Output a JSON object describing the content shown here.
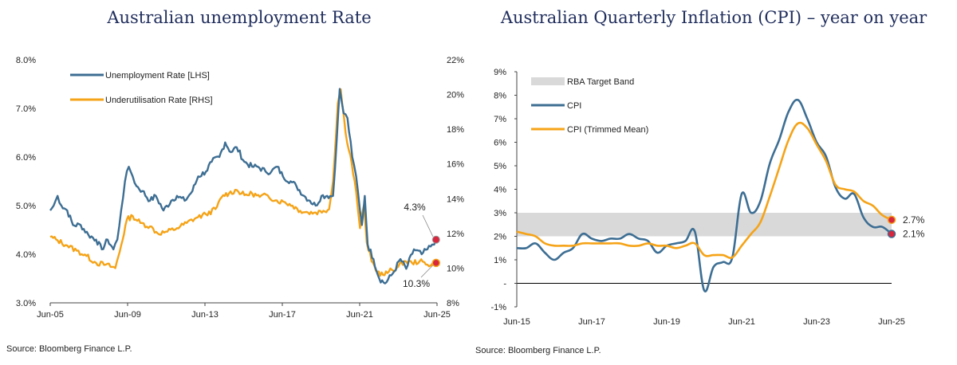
{
  "colors": {
    "blue": "#3d6e93",
    "orange": "#f5a317",
    "band": "#d9d9d9",
    "marker": "#d7263d",
    "neg": "#d7263d",
    "title": "#1f2d5c"
  },
  "chart_data": [
    {
      "type": "line",
      "title": "Australian unemployment Rate",
      "source": "Source: Bloomberg Finance L.P.",
      "x_ticks": [
        "Jun-05",
        "Jun-09",
        "Jun-13",
        "Jun-17",
        "Jun-21",
        "Jun-25"
      ],
      "x_range": [
        2005.42,
        2025.5
      ],
      "ylim_left": [
        3,
        8
      ],
      "ylim_right": [
        8,
        22
      ],
      "y_ticks_left": [
        "3.0%",
        "4.0%",
        "5.0%",
        "6.0%",
        "7.0%",
        "8.0%"
      ],
      "y_ticks_right": [
        "8%",
        "10%",
        "12%",
        "14%",
        "16%",
        "18%",
        "20%",
        "22%"
      ],
      "legend": [
        "Unemployment Rate [LHS]",
        "Underutilisation Rate [RHS]"
      ],
      "annotations": [
        "4.3%",
        "10.3%"
      ],
      "series": [
        {
          "name": "Unemployment Rate [LHS]",
          "axis": "left",
          "points": [
            [
              2005.42,
              4.9
            ],
            [
              2005.6,
              5.0
            ],
            [
              2005.8,
              5.2
            ],
            [
              2006.0,
              5.0
            ],
            [
              2006.3,
              4.9
            ],
            [
              2006.6,
              4.6
            ],
            [
              2007.0,
              4.6
            ],
            [
              2007.4,
              4.4
            ],
            [
              2007.8,
              4.3
            ],
            [
              2008.1,
              4.1
            ],
            [
              2008.4,
              4.3
            ],
            [
              2008.7,
              4.1
            ],
            [
              2008.9,
              4.3
            ],
            [
              2009.1,
              4.9
            ],
            [
              2009.3,
              5.5
            ],
            [
              2009.5,
              5.8
            ],
            [
              2009.7,
              5.6
            ],
            [
              2009.9,
              5.4
            ],
            [
              2010.2,
              5.3
            ],
            [
              2010.6,
              5.1
            ],
            [
              2010.9,
              5.2
            ],
            [
              2011.3,
              4.9
            ],
            [
              2011.7,
              5.1
            ],
            [
              2012.0,
              5.2
            ],
            [
              2012.4,
              5.1
            ],
            [
              2012.8,
              5.3
            ],
            [
              2013.1,
              5.6
            ],
            [
              2013.5,
              5.7
            ],
            [
              2013.8,
              5.9
            ],
            [
              2014.2,
              6.0
            ],
            [
              2014.5,
              6.3
            ],
            [
              2014.8,
              6.1
            ],
            [
              2015.1,
              6.2
            ],
            [
              2015.5,
              5.9
            ],
            [
              2015.9,
              5.8
            ],
            [
              2016.2,
              5.8
            ],
            [
              2016.6,
              5.7
            ],
            [
              2016.9,
              5.7
            ],
            [
              2017.2,
              5.8
            ],
            [
              2017.5,
              5.6
            ],
            [
              2017.9,
              5.5
            ],
            [
              2018.2,
              5.4
            ],
            [
              2018.6,
              5.2
            ],
            [
              2018.9,
              5.1
            ],
            [
              2019.2,
              5.0
            ],
            [
              2019.5,
              5.2
            ],
            [
              2019.8,
              5.2
            ],
            [
              2020.1,
              5.2
            ],
            [
              2020.3,
              6.4
            ],
            [
              2020.45,
              7.4
            ],
            [
              2020.65,
              6.9
            ],
            [
              2020.85,
              6.8
            ],
            [
              2021.1,
              6.0
            ],
            [
              2021.3,
              5.6
            ],
            [
              2021.5,
              4.9
            ],
            [
              2021.6,
              4.6
            ],
            [
              2021.75,
              5.2
            ],
            [
              2021.9,
              4.2
            ],
            [
              2022.2,
              3.9
            ],
            [
              2022.5,
              3.5
            ],
            [
              2022.8,
              3.4
            ],
            [
              2023.2,
              3.6
            ],
            [
              2023.6,
              3.9
            ],
            [
              2023.9,
              3.7
            ],
            [
              2024.3,
              4.1
            ],
            [
              2024.7,
              4.0
            ],
            [
              2025.0,
              4.1
            ],
            [
              2025.25,
              4.2
            ],
            [
              2025.45,
              4.3
            ]
          ]
        },
        {
          "name": "Underutilisation Rate [RHS]",
          "axis": "right",
          "points": [
            [
              2005.42,
              11.8
            ],
            [
              2005.8,
              11.6
            ],
            [
              2006.3,
              11.3
            ],
            [
              2006.8,
              11.0
            ],
            [
              2007.3,
              10.7
            ],
            [
              2007.8,
              10.3
            ],
            [
              2008.3,
              10.2
            ],
            [
              2008.8,
              10.0
            ],
            [
              2009.1,
              11.3
            ],
            [
              2009.4,
              12.8
            ],
            [
              2009.7,
              13.0
            ],
            [
              2010.1,
              12.6
            ],
            [
              2010.6,
              12.4
            ],
            [
              2011.0,
              12.0
            ],
            [
              2011.5,
              12.1
            ],
            [
              2012.0,
              12.3
            ],
            [
              2012.5,
              12.6
            ],
            [
              2013.0,
              12.9
            ],
            [
              2013.5,
              13.1
            ],
            [
              2014.0,
              13.4
            ],
            [
              2014.4,
              14.2
            ],
            [
              2014.7,
              14.3
            ],
            [
              2015.1,
              14.5
            ],
            [
              2015.5,
              14.2
            ],
            [
              2015.9,
              14.3
            ],
            [
              2016.3,
              14.1
            ],
            [
              2016.7,
              14.2
            ],
            [
              2017.1,
              13.9
            ],
            [
              2017.6,
              13.8
            ],
            [
              2018.0,
              13.6
            ],
            [
              2018.4,
              13.3
            ],
            [
              2018.8,
              13.2
            ],
            [
              2019.2,
              13.2
            ],
            [
              2019.6,
              13.3
            ],
            [
              2019.9,
              13.4
            ],
            [
              2020.1,
              15.0
            ],
            [
              2020.35,
              19.5
            ],
            [
              2020.5,
              20.3
            ],
            [
              2020.75,
              17.8
            ],
            [
              2021.0,
              16.5
            ],
            [
              2021.3,
              14.4
            ],
            [
              2021.5,
              12.3
            ],
            [
              2021.7,
              13.6
            ],
            [
              2021.85,
              11.5
            ],
            [
              2022.1,
              10.4
            ],
            [
              2022.4,
              9.8
            ],
            [
              2022.7,
              9.6
            ],
            [
              2023.0,
              9.8
            ],
            [
              2023.4,
              10.0
            ],
            [
              2023.8,
              10.4
            ],
            [
              2024.2,
              10.3
            ],
            [
              2024.6,
              10.4
            ],
            [
              2025.0,
              10.2
            ],
            [
              2025.45,
              10.3
            ]
          ]
        }
      ]
    },
    {
      "type": "line",
      "title": "Australian Quarterly Inflation (CPI) – year on year",
      "source": "Source: Bloomberg Finance L.P.",
      "x_ticks": [
        "Jun-15",
        "Jun-17",
        "Jun-19",
        "Jun-21",
        "Jun-23",
        "Jun-25"
      ],
      "x_range": [
        2015.42,
        2025.42
      ],
      "ylim": [
        -1,
        9
      ],
      "y_ticks": [
        "-1%",
        "-",
        "1%",
        "2%",
        "3%",
        "4%",
        "5%",
        "6%",
        "7%",
        "8%",
        "9%"
      ],
      "band": {
        "label": "RBA Target Band",
        "low": 2,
        "high": 3
      },
      "legend": [
        "RBA Target Band",
        "CPI",
        "CPI (Trimmed Mean)"
      ],
      "annotations": [
        "2.7%",
        "2.1%"
      ],
      "series": [
        {
          "name": "CPI",
          "points": [
            [
              2015.42,
              1.5
            ],
            [
              2015.67,
              1.5
            ],
            [
              2015.92,
              1.7
            ],
            [
              2016.17,
              1.3
            ],
            [
              2016.42,
              1.0
            ],
            [
              2016.67,
              1.3
            ],
            [
              2016.92,
              1.5
            ],
            [
              2017.17,
              2.1
            ],
            [
              2017.42,
              1.9
            ],
            [
              2017.67,
              1.8
            ],
            [
              2017.92,
              1.9
            ],
            [
              2018.17,
              1.9
            ],
            [
              2018.42,
              2.1
            ],
            [
              2018.67,
              1.9
            ],
            [
              2018.92,
              1.8
            ],
            [
              2019.17,
              1.3
            ],
            [
              2019.42,
              1.6
            ],
            [
              2019.67,
              1.7
            ],
            [
              2019.92,
              1.8
            ],
            [
              2020.17,
              2.2
            ],
            [
              2020.42,
              -0.3
            ],
            [
              2020.67,
              0.7
            ],
            [
              2020.92,
              0.9
            ],
            [
              2021.17,
              1.1
            ],
            [
              2021.42,
              3.8
            ],
            [
              2021.67,
              3.0
            ],
            [
              2021.92,
              3.5
            ],
            [
              2022.17,
              5.1
            ],
            [
              2022.42,
              6.1
            ],
            [
              2022.67,
              7.3
            ],
            [
              2022.92,
              7.8
            ],
            [
              2023.17,
              7.0
            ],
            [
              2023.42,
              6.0
            ],
            [
              2023.67,
              5.4
            ],
            [
              2023.92,
              4.1
            ],
            [
              2024.17,
              3.6
            ],
            [
              2024.42,
              3.8
            ],
            [
              2024.67,
              2.8
            ],
            [
              2024.92,
              2.4
            ],
            [
              2025.17,
              2.4
            ],
            [
              2025.42,
              2.1
            ]
          ]
        },
        {
          "name": "CPI (Trimmed Mean)",
          "points": [
            [
              2015.42,
              2.2
            ],
            [
              2015.67,
              2.1
            ],
            [
              2015.92,
              2.0
            ],
            [
              2016.17,
              1.7
            ],
            [
              2016.42,
              1.6
            ],
            [
              2016.67,
              1.6
            ],
            [
              2016.92,
              1.6
            ],
            [
              2017.17,
              1.7
            ],
            [
              2017.42,
              1.7
            ],
            [
              2017.67,
              1.7
            ],
            [
              2017.92,
              1.7
            ],
            [
              2018.17,
              1.7
            ],
            [
              2018.42,
              1.6
            ],
            [
              2018.67,
              1.6
            ],
            [
              2018.92,
              1.7
            ],
            [
              2019.17,
              1.6
            ],
            [
              2019.42,
              1.6
            ],
            [
              2019.67,
              1.5
            ],
            [
              2019.92,
              1.6
            ],
            [
              2020.17,
              1.7
            ],
            [
              2020.42,
              1.2
            ],
            [
              2020.67,
              1.2
            ],
            [
              2020.92,
              1.2
            ],
            [
              2021.17,
              1.1
            ],
            [
              2021.42,
              1.6
            ],
            [
              2021.67,
              2.1
            ],
            [
              2021.92,
              2.6
            ],
            [
              2022.17,
              3.7
            ],
            [
              2022.42,
              4.9
            ],
            [
              2022.67,
              6.1
            ],
            [
              2022.92,
              6.8
            ],
            [
              2023.17,
              6.6
            ],
            [
              2023.42,
              5.9
            ],
            [
              2023.67,
              5.2
            ],
            [
              2023.92,
              4.2
            ],
            [
              2024.17,
              4.0
            ],
            [
              2024.42,
              3.9
            ],
            [
              2024.67,
              3.5
            ],
            [
              2024.92,
              3.3
            ],
            [
              2025.17,
              2.9
            ],
            [
              2025.42,
              2.7
            ]
          ]
        }
      ]
    }
  ]
}
